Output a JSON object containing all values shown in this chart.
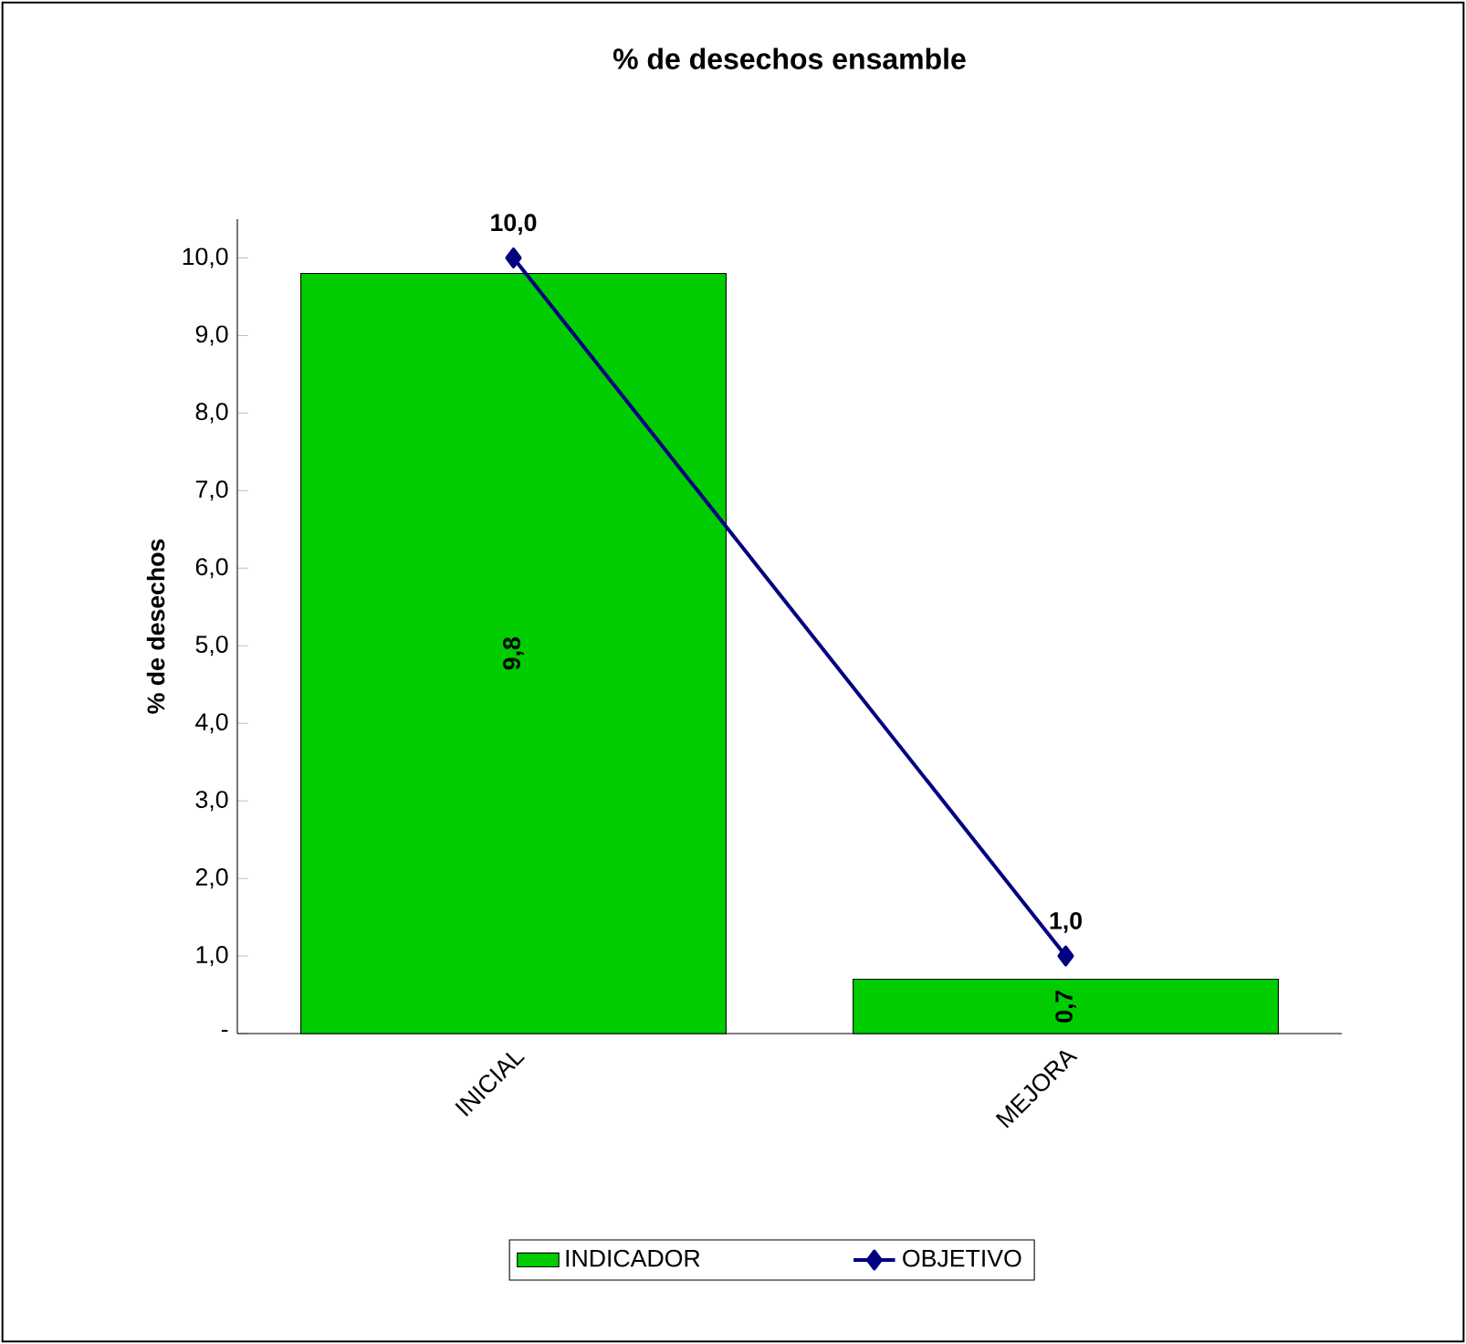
{
  "chart_data": {
    "type": "bar",
    "title": "% de desechos ensamble",
    "ylabel": "% de desechos",
    "categories": [
      "INICIAL",
      "MEJORA"
    ],
    "series": [
      {
        "name": "INDICADOR",
        "color": "#00cc00",
        "values": [
          9.8,
          0.7
        ],
        "value_labels": [
          "9,8",
          "0,7"
        ]
      },
      {
        "name": "OBJETIVO",
        "type": "line",
        "color": "#000080",
        "values": [
          10,
          1
        ],
        "value_labels": [
          "10,0",
          "1,0"
        ],
        "marker": "diamond"
      }
    ],
    "ylim": [
      0,
      10.5
    ],
    "yticks": [
      {
        "value": 0,
        "label": "-"
      },
      {
        "value": 1,
        "label": "1,0"
      },
      {
        "value": 2,
        "label": "2,0"
      },
      {
        "value": 3,
        "label": "3,0"
      },
      {
        "value": 4,
        "label": "4,0"
      },
      {
        "value": 5,
        "label": "5,0"
      },
      {
        "value": 6,
        "label": "6,0"
      },
      {
        "value": 7,
        "label": "7,0"
      },
      {
        "value": 8,
        "label": "8,0"
      },
      {
        "value": 9,
        "label": "9,0"
      },
      {
        "value": 10,
        "label": "10,0"
      }
    ],
    "grid": false,
    "legend": "bottom"
  }
}
